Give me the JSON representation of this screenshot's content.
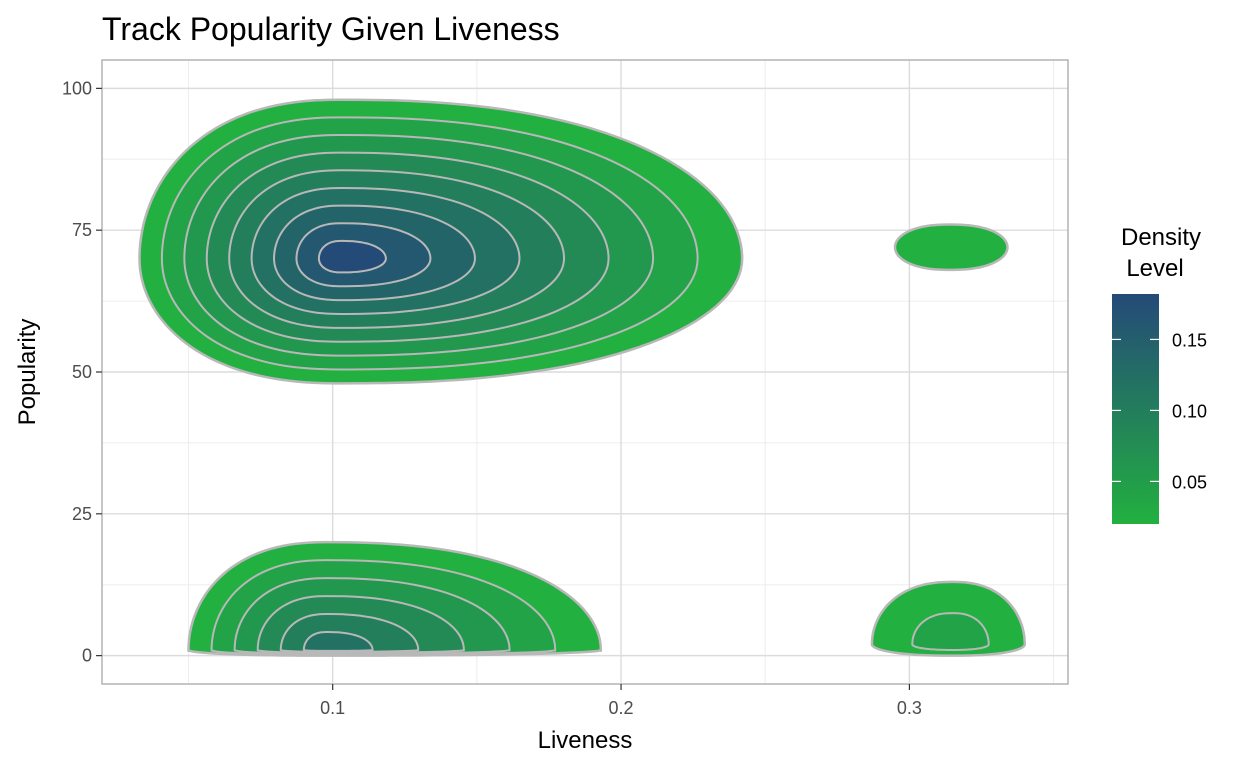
{
  "chart_data": {
    "type": "density2d",
    "title": "Track Popularity Given Liveness",
    "xlabel": "Liveness",
    "ylabel": "Popularity",
    "xlim": [
      0.02,
      0.355
    ],
    "ylim": [
      -5,
      105
    ],
    "x_ticks": [
      0.1,
      0.2,
      0.3
    ],
    "x_tick_labels": [
      "0.1",
      "0.2",
      "0.3"
    ],
    "y_ticks": [
      0,
      25,
      50,
      75,
      100
    ],
    "y_tick_labels": [
      "0",
      "25",
      "50",
      "75",
      "100"
    ],
    "grid": true,
    "legend": {
      "title_line1": "Density",
      "title_line2": "Level",
      "placement": "right",
      "range": [
        0.02,
        0.182
      ],
      "low_color": "#22b040",
      "high_color": "#244a78",
      "ticks": [
        0.05,
        0.1,
        0.15
      ],
      "tick_labels": [
        "0.05",
        "0.10",
        "0.15"
      ]
    },
    "regions": [
      {
        "name": "upper-main-cluster",
        "peak": {
          "x": 0.103,
          "y": 70
        },
        "outer_extent": {
          "x": [
            0.033,
            0.242
          ],
          "y": [
            48,
            98
          ]
        },
        "contour_levels": [
          0.02,
          0.04,
          0.06,
          0.08,
          0.1,
          0.12,
          0.14,
          0.16,
          0.18
        ]
      },
      {
        "name": "lower-main-cluster",
        "peak": {
          "x": 0.098,
          "y": 1
        },
        "outer_extent": {
          "x": [
            0.05,
            0.193
          ],
          "y": [
            0,
            20
          ]
        },
        "contour_levels": [
          0.02,
          0.04,
          0.06,
          0.08,
          0.1,
          0.12
        ]
      },
      {
        "name": "upper-small-cluster",
        "peak": {
          "x": 0.314,
          "y": 72
        },
        "outer_extent": {
          "x": [
            0.295,
            0.334
          ],
          "y": [
            68,
            76
          ]
        },
        "contour_levels": [
          0.02
        ]
      },
      {
        "name": "lower-small-cluster",
        "peak": {
          "x": 0.315,
          "y": 2
        },
        "outer_extent": {
          "x": [
            0.287,
            0.34
          ],
          "y": [
            0,
            13
          ]
        },
        "contour_levels": [
          0.02,
          0.04
        ]
      }
    ],
    "colors": {
      "panel_border": "#b3b3b3",
      "grid_major": "#dcdcdc",
      "grid_minor": "#ededed",
      "contour_line": "#b8b8b8"
    }
  }
}
